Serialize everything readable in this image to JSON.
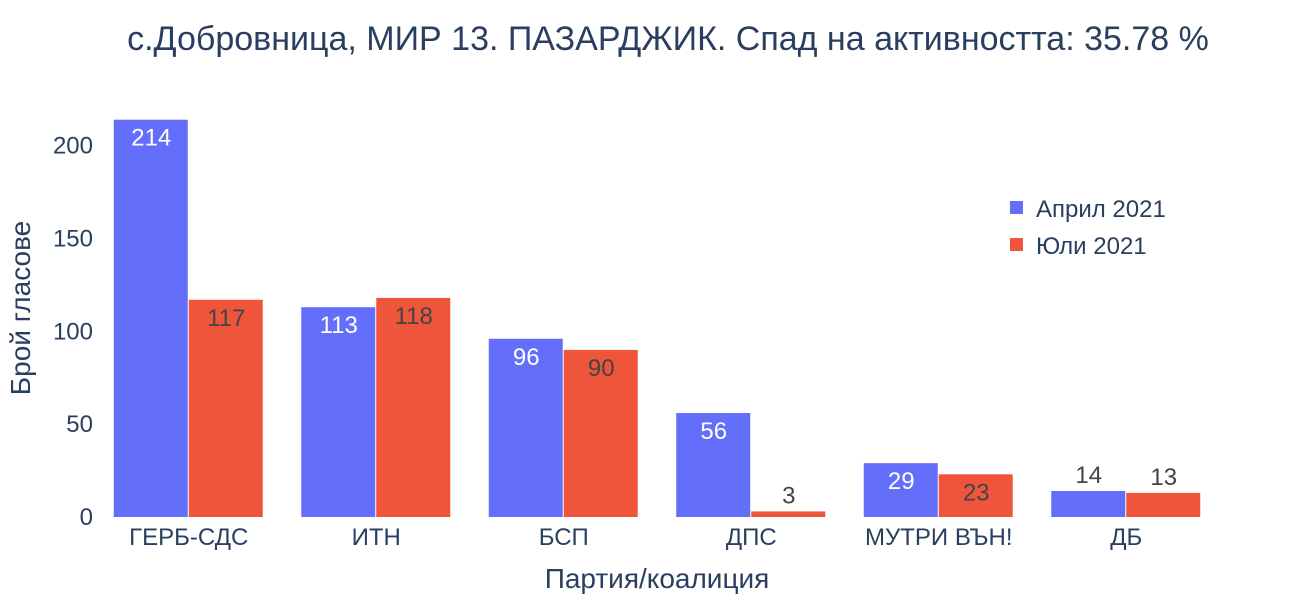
{
  "chart_data": {
    "type": "bar",
    "title": "с.Добровница, МИР 13. ПАЗАРДЖИК. Спад на активността: 35.78 %",
    "xlabel": "Партия/коалиция",
    "ylabel": "Брой гласове",
    "categories": [
      "ГЕРБ-СДС",
      "ИТН",
      "БСП",
      "ДПС",
      "МУТРИ ВЪН!",
      "ДБ"
    ],
    "series": [
      {
        "name": "Април 2021",
        "color": "#636efa",
        "values": [
          214,
          113,
          96,
          56,
          29,
          14
        ]
      },
      {
        "name": "Юли 2021",
        "color": "#ef553b",
        "values": [
          117,
          118,
          90,
          3,
          23,
          13
        ]
      }
    ],
    "ylim": [
      0,
      216
    ],
    "yticks": [
      0,
      50,
      100,
      150,
      200
    ],
    "grid": false,
    "legend": "top-right"
  }
}
